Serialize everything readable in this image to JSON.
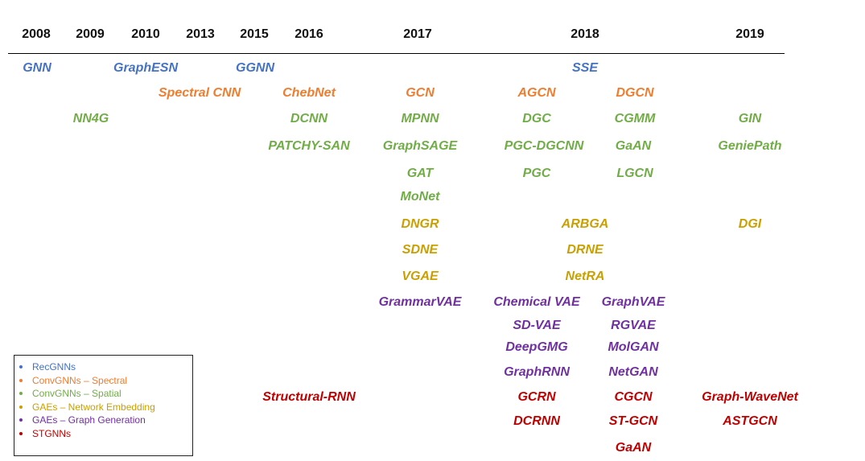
{
  "years": [
    "2008",
    "2009",
    "2010",
    "2013",
    "2015",
    "2016",
    "2017",
    "2018",
    "2019"
  ],
  "legend": [
    {
      "label": "RecGNNs",
      "color": "#4472c4"
    },
    {
      "label": "ConvGNNs – Spectral",
      "color": "#ed7d31"
    },
    {
      "label": "ConvGNNs – Spatial",
      "color": "#70ad47"
    },
    {
      "label": "GAEs – Network Embedding",
      "color": "#c9a000"
    },
    {
      "label": "GAEs – Graph Generation",
      "color": "#7030a0"
    },
    {
      "label": "STGNNs",
      "color": "#c00000"
    }
  ],
  "models": [
    {
      "name": "GNN",
      "category": 0
    },
    {
      "name": "GraphESN",
      "category": 0
    },
    {
      "name": "GGNN",
      "category": 0
    },
    {
      "name": "SSE",
      "category": 0
    },
    {
      "name": "Spectral CNN",
      "category": 1
    },
    {
      "name": "ChebNet",
      "category": 1
    },
    {
      "name": "GCN",
      "category": 1
    },
    {
      "name": "AGCN",
      "category": 1
    },
    {
      "name": "DGCN",
      "category": 1
    },
    {
      "name": "NN4G",
      "category": 2
    },
    {
      "name": "DCNN",
      "category": 2
    },
    {
      "name": "MPNN",
      "category": 2
    },
    {
      "name": "DGC",
      "category": 2
    },
    {
      "name": "CGMM",
      "category": 2
    },
    {
      "name": "GIN",
      "category": 2
    },
    {
      "name": "PATCHY-SAN",
      "category": 2
    },
    {
      "name": "GraphSAGE",
      "category": 2
    },
    {
      "name": "PGC-DGCNN",
      "category": 2
    },
    {
      "name": "GaAN",
      "category": 2
    },
    {
      "name": "GeniePath",
      "category": 2
    },
    {
      "name": "GAT",
      "category": 2
    },
    {
      "name": "PGC",
      "category": 2
    },
    {
      "name": "LGCN",
      "category": 2
    },
    {
      "name": "MoNet",
      "category": 2
    },
    {
      "name": "DNGR",
      "category": 3
    },
    {
      "name": "ARBGA",
      "category": 3
    },
    {
      "name": "DGI",
      "category": 3
    },
    {
      "name": "SDNE",
      "category": 3
    },
    {
      "name": "DRNE",
      "category": 3
    },
    {
      "name": "VGAE",
      "category": 3
    },
    {
      "name": "NetRA",
      "category": 3
    },
    {
      "name": "GrammarVAE",
      "category": 4
    },
    {
      "name": "Chemical VAE",
      "category": 4
    },
    {
      "name": "GraphVAE",
      "category": 4
    },
    {
      "name": "SD-VAE",
      "category": 4
    },
    {
      "name": "RGVAE",
      "category": 4
    },
    {
      "name": "DeepGMG",
      "category": 4
    },
    {
      "name": "MolGAN",
      "category": 4
    },
    {
      "name": "GraphRNN",
      "category": 4
    },
    {
      "name": "NetGAN",
      "category": 4
    },
    {
      "name": "Structural-RNN",
      "category": 5
    },
    {
      "name": "GCRN",
      "category": 5
    },
    {
      "name": "CGCN",
      "category": 5
    },
    {
      "name": "Graph-WaveNet",
      "category": 5
    },
    {
      "name": "DCRNN",
      "category": 5
    },
    {
      "name": "ST-GCN",
      "category": 5
    },
    {
      "name": "ASTGCN",
      "category": 5
    },
    {
      "name": "GaAN",
      "category": 5
    }
  ]
}
